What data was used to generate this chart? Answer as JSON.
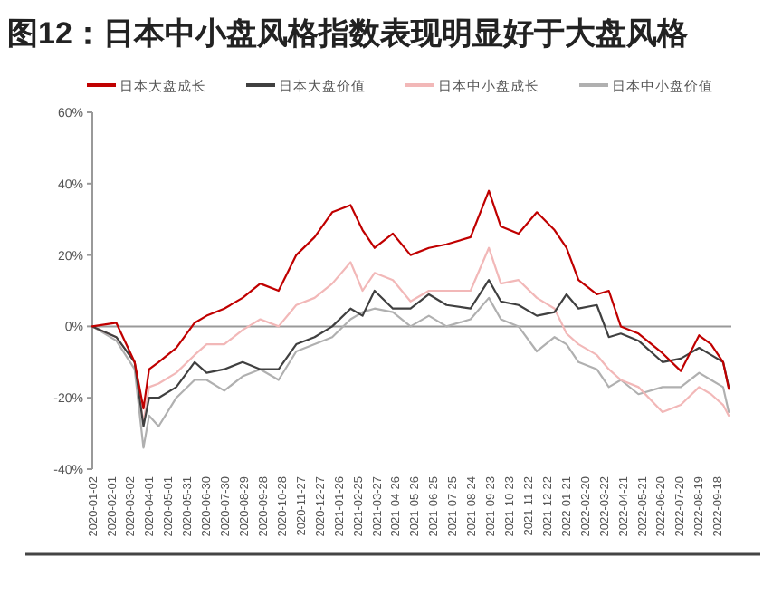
{
  "chart_data": {
    "type": "line",
    "title": "图12：日本中小盘风格指数表现明显好于大盘风格",
    "x": [
      "2020-01-02",
      "2020-02-09",
      "2020-03-09",
      "2020-03-23",
      "2020-04-01",
      "2020-04-16",
      "2020-05-14",
      "2020-06-12",
      "2020-07-01",
      "2020-07-29",
      "2020-08-27",
      "2020-09-24",
      "2020-10-23",
      "2020-11-20",
      "2020-12-19",
      "2021-01-16",
      "2021-02-14",
      "2021-03-05",
      "2021-03-24",
      "2021-04-22",
      "2021-05-20",
      "2021-06-18",
      "2021-07-16",
      "2021-08-23",
      "2021-09-21",
      "2021-10-10",
      "2021-11-07",
      "2021-12-06",
      "2022-01-03",
      "2022-01-22",
      "2022-02-10",
      "2022-03-11",
      "2022-03-30",
      "2022-04-18",
      "2022-05-16",
      "2022-06-23",
      "2022-07-22",
      "2022-08-20",
      "2022-09-08",
      "2022-09-27",
      "2022-10-06"
    ],
    "series": [
      {
        "name": "日本大盘成长",
        "color": "#c00000",
        "values": [
          0,
          1,
          -10,
          -23,
          -12,
          -10,
          -6,
          1,
          3,
          5,
          8,
          12,
          10,
          20,
          25,
          32,
          34,
          27,
          22,
          26,
          20,
          22,
          23,
          25,
          38,
          28,
          26,
          32,
          27,
          22,
          13,
          9,
          10,
          0,
          -2,
          -7.5,
          -12.5,
          -2.5,
          -5,
          -10,
          -17.5
        ]
      },
      {
        "name": "日本大盘价值",
        "color": "#404040",
        "values": [
          0,
          -3,
          -10,
          -28,
          -20,
          -20,
          -17,
          -10,
          -13,
          -12,
          -10,
          -12,
          -12,
          -5,
          -3,
          0,
          5,
          3,
          10,
          5,
          5,
          9,
          6,
          5,
          13,
          7,
          6,
          3,
          4,
          9,
          5,
          6,
          -3,
          -2,
          -4,
          -10,
          -9,
          -6,
          -8,
          -10,
          -17
        ]
      },
      {
        "name": "日本中小盘成长",
        "color": "#f2b8b8",
        "values": [
          0,
          -3,
          -10,
          -27,
          -17,
          -16,
          -13,
          -8,
          -5,
          -5,
          -1,
          2,
          0,
          6,
          8,
          12,
          18,
          10,
          15,
          13,
          7,
          10,
          10,
          10,
          22,
          12,
          13,
          8,
          5,
          -2,
          -5,
          -8,
          -12,
          -15,
          -17,
          -24,
          -22,
          -17,
          -19,
          -22,
          -25
        ]
      },
      {
        "name": "日本中小盘价值",
        "color": "#b0b0b0",
        "values": [
          0,
          -4,
          -12,
          -34,
          -25,
          -28,
          -20,
          -15,
          -15,
          -18,
          -14,
          -12,
          -15,
          -7,
          -5,
          -3,
          2,
          4,
          5,
          4,
          0,
          3,
          0,
          2,
          8,
          2,
          0,
          -7,
          -3,
          -5,
          -10,
          -12,
          -17,
          -15,
          -19,
          -17,
          -17,
          -13,
          -15,
          -17,
          -24
        ]
      }
    ],
    "xlim": [
      "2020-01-02",
      "2022-10-10"
    ],
    "xticks": [
      "2020-01-02",
      "2020-02-01",
      "2020-03-02",
      "2020-04-01",
      "2020-05-01",
      "2020-05-31",
      "2020-06-30",
      "2020-07-30",
      "2020-08-29",
      "2020-09-28",
      "2020-10-28",
      "2020-11-27",
      "2020-12-27",
      "2021-01-26",
      "2021-02-25",
      "2021-03-27",
      "2021-04-26",
      "2021-05-26",
      "2021-06-25",
      "2021-07-25",
      "2021-08-24",
      "2021-09-23",
      "2021-10-23",
      "2021-11-22",
      "2021-12-22",
      "2022-01-21",
      "2022-02-20",
      "2022-03-22",
      "2022-04-21",
      "2022-05-21",
      "2022-06-20",
      "2022-07-20",
      "2022-08-19",
      "2022-09-18"
    ],
    "ylim": [
      -40,
      60
    ],
    "yticks": [
      {
        "value": -40,
        "label": "-40%"
      },
      {
        "value": -20,
        "label": "-20%"
      },
      {
        "value": 0,
        "label": "0%"
      },
      {
        "value": 20,
        "label": "20%"
      },
      {
        "value": 40,
        "label": "40%"
      },
      {
        "value": 60,
        "label": "60%"
      }
    ],
    "ref_lines": [
      {
        "axis": "y",
        "value": 0,
        "color": "#999999"
      }
    ],
    "legend": "top",
    "grid": false,
    "marker": "none",
    "line_style": "solid"
  }
}
